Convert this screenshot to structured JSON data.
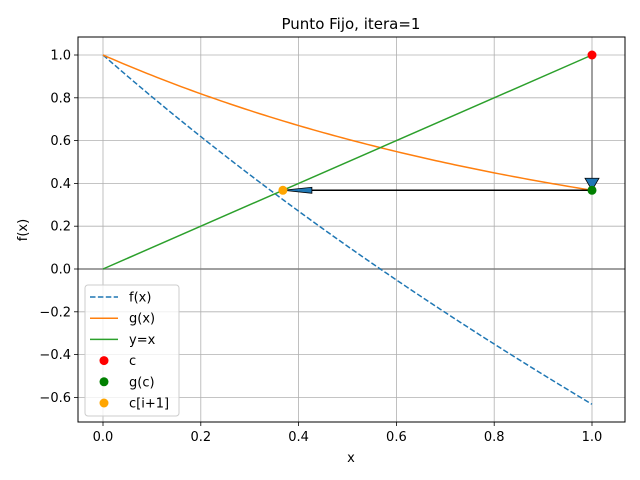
{
  "chart_data": {
    "type": "line",
    "title": "Punto Fijo, itera=1",
    "xlabel": "x",
    "ylabel": "f(x)",
    "xlim": [
      -0.05,
      1.07
    ],
    "ylim": [
      -0.71,
      1.08
    ],
    "grid": true,
    "legend_position": "lower left",
    "x_ticks": [
      0.0,
      0.2,
      0.4,
      0.6,
      0.8,
      1.0
    ],
    "x_tick_labels": [
      "0.0",
      "0.2",
      "0.4",
      "0.6",
      "0.8",
      "1.0"
    ],
    "y_ticks": [
      -0.6,
      -0.4,
      -0.2,
      0.0,
      0.2,
      0.4,
      0.6,
      0.8,
      1.0
    ],
    "y_tick_labels": [
      "−0.6",
      "−0.4",
      "−0.2",
      "0.0",
      "0.2",
      "0.4",
      "0.6",
      "0.8",
      "1.0"
    ],
    "series": [
      {
        "name": "f(x)",
        "style": "dashed",
        "color": "#1f77b4",
        "x": [
          0.0,
          0.1,
          0.2,
          0.3,
          0.4,
          0.5,
          0.6,
          0.7,
          0.8,
          0.9,
          1.0
        ],
        "values": [
          1.0,
          0.805,
          0.619,
          0.441,
          0.27,
          0.107,
          -0.051,
          -0.203,
          -0.351,
          -0.493,
          -0.632
        ]
      },
      {
        "name": "g(x)",
        "style": "solid",
        "color": "#ff7f0e",
        "x": [
          0.0,
          0.1,
          0.2,
          0.3,
          0.4,
          0.5,
          0.6,
          0.7,
          0.8,
          0.9,
          1.0
        ],
        "values": [
          1.0,
          0.905,
          0.819,
          0.741,
          0.67,
          0.607,
          0.549,
          0.497,
          0.449,
          0.407,
          0.368
        ]
      },
      {
        "name": "y=x",
        "style": "solid",
        "color": "#2ca02c",
        "x": [
          0.0,
          1.0
        ],
        "values": [
          0.0,
          1.0
        ]
      },
      {
        "name": "c",
        "style": "marker",
        "color": "#ff0000",
        "x": [
          1.0
        ],
        "values": [
          1.0
        ]
      },
      {
        "name": "g(c)",
        "style": "marker",
        "color": "#008000",
        "x": [
          1.0
        ],
        "values": [
          0.368
        ]
      },
      {
        "name": "c[i+1]",
        "style": "marker",
        "color": "#ffa500",
        "x": [
          0.368
        ],
        "values": [
          0.368
        ]
      }
    ],
    "annotations": [
      {
        "type": "arrow",
        "from": [
          1.0,
          1.0
        ],
        "to": [
          1.0,
          0.368
        ],
        "color": "#808080",
        "head_color": "#1f77b4"
      },
      {
        "type": "arrow",
        "from": [
          1.0,
          0.368
        ],
        "to": [
          0.368,
          0.368
        ],
        "color": "#000000",
        "head_color": "#1f77b4"
      },
      {
        "type": "hline",
        "y": 0.0,
        "color": "#808080"
      }
    ],
    "legend": [
      {
        "label": "f(x)",
        "kind": "dashed",
        "color": "#1f77b4"
      },
      {
        "label": "g(x)",
        "kind": "line",
        "color": "#ff7f0e"
      },
      {
        "label": "y=x",
        "kind": "line",
        "color": "#2ca02c"
      },
      {
        "label": "c",
        "kind": "dot",
        "color": "#ff0000"
      },
      {
        "label": "g(c)",
        "kind": "dot",
        "color": "#008000"
      },
      {
        "label": "c[i+1]",
        "kind": "dot",
        "color": "#ffa500"
      }
    ]
  }
}
